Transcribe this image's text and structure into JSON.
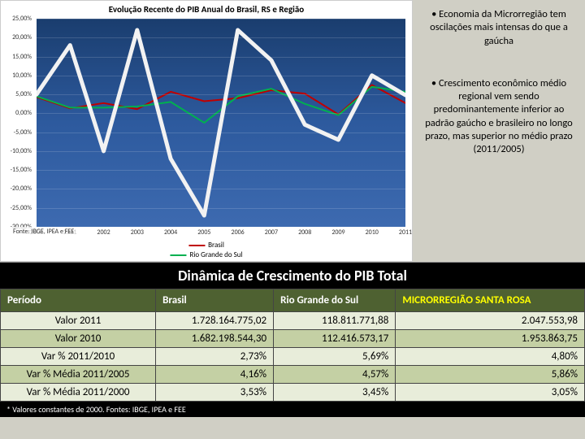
{
  "chart": {
    "title": "Evolução Recente do PIB Anual do Brasil, RS e Região",
    "ylim": [
      -30,
      25
    ],
    "ytick_step": 5,
    "yticks": [
      -30,
      -25,
      -20,
      -15,
      -10,
      -5,
      0,
      5,
      10,
      15,
      20,
      25
    ],
    "ytick_labels": [
      "-30,00%",
      "-25,00%",
      "-20,00%",
      "-15,00%",
      "-10,00%",
      "-5,00%",
      "0,00%",
      "5,00%",
      "10,00%",
      "15,00%",
      "20,00%",
      "25,00%"
    ],
    "xticks": [
      "2000",
      "2001",
      "2002",
      "2003",
      "2004",
      "2005",
      "2006",
      "2007",
      "2008",
      "2009",
      "2010",
      "2011"
    ],
    "background_gradient": [
      "#1a3d6e",
      "#3d6ab0"
    ],
    "series": [
      {
        "name": "Brasil",
        "color": "#c00000",
        "width": 2,
        "values": [
          4.3,
          1.3,
          2.7,
          1.1,
          5.7,
          3.2,
          4.0,
          6.1,
          5.2,
          -0.3,
          7.5,
          2.7
        ]
      },
      {
        "name": "Rio Grande do Sul",
        "color": "#00b050",
        "width": 2,
        "values": [
          4.5,
          1.5,
          1.5,
          1.8,
          3.0,
          -2.5,
          4.5,
          6.5,
          2.5,
          -0.5,
          7.0,
          5.7
        ]
      },
      {
        "name": "Microrregião",
        "color": "#f2f2f2",
        "width": 5,
        "values": [
          5.0,
          18.0,
          -10.0,
          22.0,
          -12.0,
          -27.0,
          22.0,
          14.0,
          -3.0,
          -7.0,
          10.0,
          4.8
        ]
      }
    ],
    "legend": [
      "Brasil",
      "Rio Grande do Sul"
    ],
    "source": "Fonte: IBGE, IPEA e FEE"
  },
  "bullets": {
    "b1": "• Economia da Microrregião tem oscilações mais intensas do que a gaúcha",
    "b2": "• Crescimento econômico médio regional vem sendo predominantemente inferior ao padrão gaúcho e brasileiro no longo prazo, mas superior no médio prazo (2011/2005)"
  },
  "table": {
    "title": "Dinâmica de Crescimento do PIB Total",
    "columns": [
      "Período",
      "Brasil",
      "Rio Grande do Sul",
      "MICRORREGIÃO SANTA ROSA"
    ],
    "rows": [
      [
        "Valor 2011",
        "1.728.164.775,02",
        "118.811.771,88",
        "2.047.553,98"
      ],
      [
        "Valor 2010",
        "1.682.198.544,30",
        "112.416.573,17",
        "1.953.863,75"
      ],
      [
        "Var % 2011/2010",
        "2,73%",
        "5,69%",
        "4,80%"
      ],
      [
        "Var % Média 2011/2005",
        "4,16%",
        "4,57%",
        "5,86%"
      ],
      [
        "Var % Média 2011/2000",
        "3,53%",
        "3,45%",
        "3,05%"
      ]
    ],
    "footnote": "* Valores constantes de 2000. Fontes: IBGE, IPEA e FEE"
  }
}
